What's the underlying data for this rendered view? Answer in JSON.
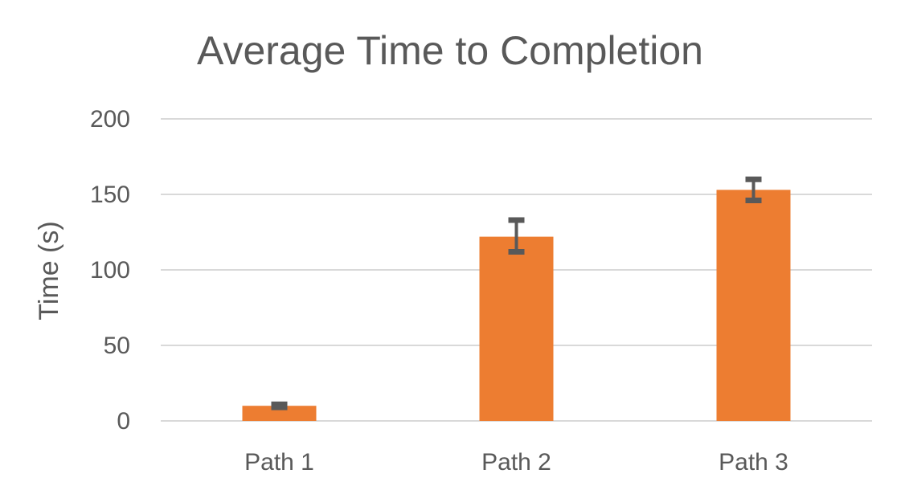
{
  "chart_data": {
    "type": "bar",
    "title": "Average Time to Completion",
    "xlabel": "",
    "ylabel": "Time (s)",
    "categories": [
      "Path 1",
      "Path 2",
      "Path 3"
    ],
    "values": [
      10,
      122,
      153
    ],
    "error_low": [
      9,
      112,
      146
    ],
    "error_high": [
      11,
      133,
      160
    ],
    "ylim": [
      0,
      200
    ],
    "yticks": [
      0,
      50,
      100,
      150,
      200
    ],
    "ytick_labels": [
      "0",
      "50",
      "100",
      "150",
      "200"
    ],
    "grid": true,
    "legend": "none",
    "bar_color": "#ED7D31",
    "error_bar_color": "#595959",
    "grid_color": "#D9D9D9",
    "text_color": "#595959"
  }
}
